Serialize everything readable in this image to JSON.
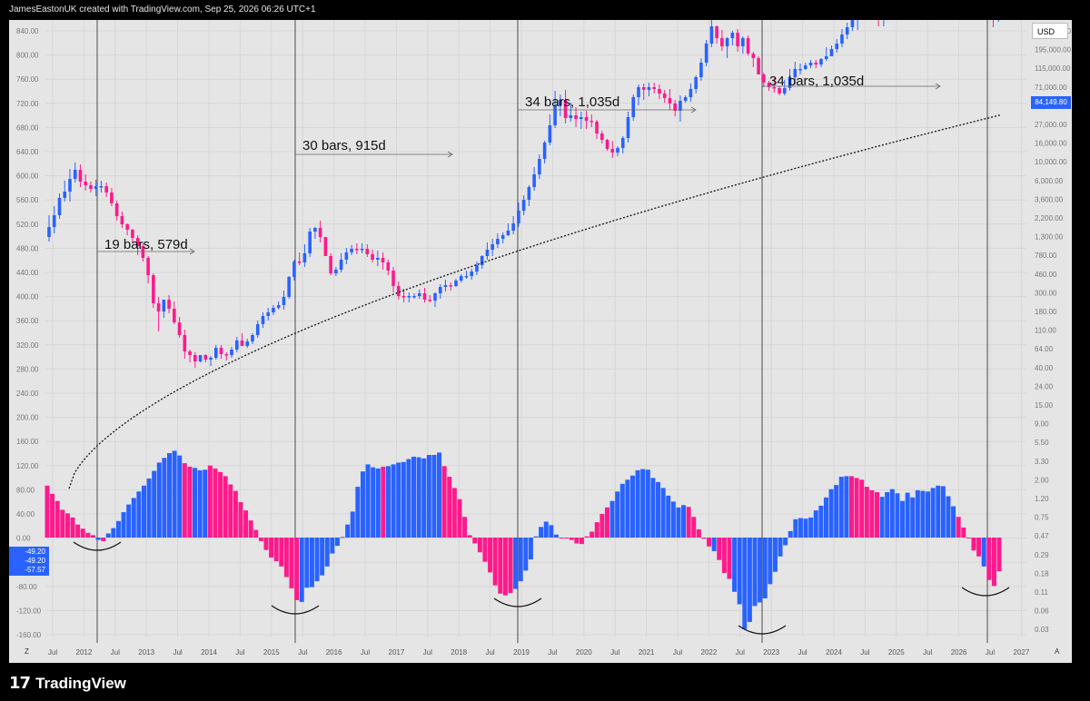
{
  "header": {
    "credit": "JamesEastonUK created with TradingView.com, Sep 25, 2026 06:26 UTC+1"
  },
  "footer": {
    "brand": "TradingView",
    "logo_glyph": "17"
  },
  "ui": {
    "currency": "USD",
    "last_price": "84,149.80",
    "osc_values": [
      "-49.20",
      "-49.20",
      "-57.57"
    ],
    "z": "Z",
    "a": "A"
  },
  "colors": {
    "up": "#2962ff",
    "down": "#ff1a8c",
    "bg": "#e5e5e5",
    "grid": "#d6d6d6"
  },
  "chart_data": {
    "type": "candlestick + histogram",
    "scale": "log",
    "x_ticks": [
      "Jul",
      "2012",
      "Jul",
      "2013",
      "Jul",
      "2014",
      "Jul",
      "2015",
      "Jul",
      "2016",
      "Jul",
      "2017",
      "Jul",
      "2018",
      "Jul",
      "2019",
      "Jul",
      "2020",
      "Jul",
      "2021",
      "Jul",
      "2022",
      "Jul",
      "2023",
      "Jul",
      "2024",
      "Jul",
      "2025",
      "Jul",
      "2026",
      "Jul",
      "2027"
    ],
    "right_axis": [
      "335,000.00",
      "195,000.00",
      "115,000.00",
      "71,000.00",
      "43,000.00",
      "27,000.00",
      "16,000.00",
      "10,000.00",
      "6,000.00",
      "3,600.00",
      "2,200.00",
      "1,300.00",
      "780.00",
      "460.00",
      "300.00",
      "180.00",
      "110.00",
      "64.00",
      "40.00",
      "24.00",
      "15.00",
      "9.00",
      "5.50",
      "3.30",
      "2.00",
      "1.20",
      "0.75",
      "0.47",
      "0.29",
      "0.18",
      "0.11",
      "0.06",
      "0.03"
    ],
    "left_axis": [
      "840.00",
      "800.00",
      "760.00",
      "720.00",
      "680.00",
      "640.00",
      "600.00",
      "560.00",
      "520.00",
      "480.00",
      "440.00",
      "400.00",
      "360.00",
      "320.00",
      "280.00",
      "240.00",
      "200.00",
      "160.00",
      "120.00",
      "80.00",
      "40.00",
      "0.00",
      "-40.00",
      "-80.00",
      "-120.00",
      "-160.00"
    ],
    "annotations": [
      "19 bars, 579d",
      "30 bars, 915d",
      "34 bars, 1,035d",
      "34 bars, 1,035d"
    ],
    "candles": [
      [
        201,
        212,
        225,
        196
      ],
      [
        212,
        225,
        235,
        205
      ],
      [
        225,
        244,
        249,
        221
      ],
      [
        244,
        251,
        263,
        240
      ],
      [
        251,
        265,
        276,
        240
      ],
      [
        265,
        275,
        283,
        261
      ],
      [
        275,
        262,
        281,
        256
      ],
      [
        262,
        258,
        270,
        252
      ],
      [
        258,
        254,
        262,
        250
      ],
      [
        254,
        257,
        264,
        246
      ],
      [
        257,
        257,
        263,
        250
      ],
      [
        257,
        250,
        261,
        245
      ],
      [
        250,
        238,
        255,
        235
      ],
      [
        238,
        224,
        241,
        219
      ],
      [
        224,
        215,
        229,
        211
      ],
      [
        215,
        209,
        216,
        203
      ],
      [
        209,
        200,
        210,
        195
      ],
      [
        200,
        191,
        203,
        181
      ],
      [
        191,
        178,
        194,
        174
      ],
      [
        178,
        159,
        180,
        150
      ],
      [
        159,
        128,
        161,
        123
      ],
      [
        128,
        119,
        135,
        97
      ],
      [
        119,
        132,
        126,
        112
      ],
      [
        132,
        122,
        137,
        117
      ],
      [
        122,
        107,
        130,
        105
      ],
      [
        107,
        93,
        113,
        90
      ],
      [
        93,
        75,
        99,
        67
      ],
      [
        75,
        71,
        77,
        63
      ],
      [
        71,
        64,
        74,
        57
      ],
      [
        64,
        71,
        70,
        63
      ],
      [
        71,
        66,
        72,
        63
      ],
      [
        66,
        68,
        70,
        59
      ],
      [
        68,
        79,
        82,
        66
      ],
      [
        79,
        72,
        82,
        67
      ],
      [
        72,
        71,
        74,
        65
      ],
      [
        71,
        77,
        80,
        68
      ],
      [
        77,
        87,
        91,
        74
      ],
      [
        87,
        81,
        95,
        81
      ],
      [
        81,
        86,
        89,
        79
      ],
      [
        86,
        93,
        95,
        83
      ],
      [
        93,
        105,
        109,
        90
      ],
      [
        105,
        114,
        118,
        101
      ],
      [
        114,
        118,
        123,
        109
      ],
      [
        118,
        123,
        126,
        115
      ],
      [
        123,
        126,
        130,
        121
      ],
      [
        126,
        135,
        142,
        121
      ],
      [
        135,
        157,
        158,
        133
      ],
      [
        157,
        174,
        176,
        153
      ],
      [
        174,
        173,
        184,
        170
      ],
      [
        173,
        183,
        193,
        168
      ],
      [
        183,
        207,
        211,
        179
      ],
      [
        207,
        211,
        212,
        199
      ],
      [
        211,
        201,
        219,
        195
      ],
      [
        201,
        180,
        201,
        180
      ],
      [
        180,
        161,
        183,
        159
      ],
      [
        161,
        165,
        168,
        158
      ],
      [
        165,
        176,
        183,
        162
      ],
      [
        176,
        184,
        189,
        171
      ],
      [
        184,
        188,
        192,
        181
      ],
      [
        188,
        187,
        194,
        182
      ],
      [
        187,
        188,
        194,
        183
      ],
      [
        188,
        182,
        193,
        179
      ],
      [
        182,
        176,
        187,
        173
      ],
      [
        176,
        178,
        186,
        169
      ],
      [
        178,
        173,
        184,
        165
      ],
      [
        173,
        164,
        176,
        159
      ],
      [
        164,
        147,
        168,
        140
      ],
      [
        147,
        136,
        152,
        132
      ],
      [
        136,
        135,
        144,
        129
      ],
      [
        135,
        136,
        140,
        129
      ],
      [
        136,
        136,
        139,
        133
      ],
      [
        136,
        139,
        143,
        133
      ],
      [
        139,
        132,
        145,
        129
      ],
      [
        132,
        131,
        137,
        129
      ],
      [
        131,
        139,
        140,
        124
      ],
      [
        139,
        146,
        149,
        133
      ],
      [
        146,
        148,
        154,
        141
      ],
      [
        148,
        147,
        151,
        142
      ],
      [
        147,
        153,
        155,
        146
      ],
      [
        153,
        158,
        160,
        151
      ],
      [
        158,
        158,
        164,
        155
      ],
      [
        158,
        163,
        166,
        154
      ],
      [
        163,
        170,
        174,
        159
      ],
      [
        170,
        180,
        181,
        166
      ],
      [
        180,
        187,
        195,
        176
      ],
      [
        187,
        193,
        199,
        180
      ],
      [
        193,
        199,
        205,
        189
      ],
      [
        199,
        203,
        206,
        194
      ],
      [
        203,
        208,
        216,
        202
      ],
      [
        208,
        216,
        224,
        204
      ],
      [
        216,
        230,
        239,
        212
      ],
      [
        230,
        242,
        247,
        225
      ],
      [
        242,
        256,
        258,
        235
      ],
      [
        256,
        270,
        278,
        252
      ],
      [
        270,
        287,
        292,
        265
      ],
      [
        287,
        305,
        307,
        282
      ],
      [
        305,
        324,
        336,
        302
      ],
      [
        324,
        346,
        362,
        321
      ],
      [
        346,
        352,
        358,
        334
      ],
      [
        352,
        332,
        363,
        326
      ],
      [
        332,
        335,
        349,
        328
      ],
      [
        335,
        331,
        344,
        322
      ],
      [
        331,
        333,
        339,
        320
      ],
      [
        333,
        329,
        340,
        320
      ],
      [
        329,
        328,
        336,
        322
      ],
      [
        328,
        315,
        330,
        309
      ],
      [
        315,
        308,
        318,
        304
      ],
      [
        308,
        298,
        309,
        296
      ],
      [
        298,
        294,
        307,
        288
      ],
      [
        294,
        299,
        301,
        290
      ],
      [
        299,
        310,
        312,
        293
      ],
      [
        310,
        333,
        339,
        305
      ],
      [
        333,
        355,
        358,
        329
      ],
      [
        355,
        366,
        369,
        346
      ],
      [
        366,
        363,
        370,
        352
      ],
      [
        363,
        366,
        371,
        356
      ],
      [
        366,
        364,
        371,
        359
      ],
      [
        364,
        359,
        369,
        353
      ],
      [
        359,
        354,
        363,
        349
      ],
      [
        354,
        348,
        364,
        341
      ],
      [
        348,
        340,
        352,
        334
      ],
      [
        340,
        351,
        357,
        328
      ],
      [
        351,
        355,
        357,
        349
      ],
      [
        355,
        364,
        370,
        350
      ],
      [
        364,
        377,
        379,
        359
      ],
      [
        377,
        393,
        398,
        373
      ],
      [
        393,
        414,
        418,
        389
      ],
      [
        414,
        433,
        444,
        410
      ],
      [
        433,
        420,
        434,
        414
      ],
      [
        420,
        411,
        429,
        406
      ],
      [
        411,
        420,
        421,
        398
      ],
      [
        420,
        426,
        428,
        412
      ],
      [
        426,
        411,
        430,
        405
      ],
      [
        411,
        420,
        422,
        403
      ],
      [
        420,
        403,
        423,
        401
      ],
      [
        403,
        398,
        405,
        388
      ],
      [
        398,
        380,
        400,
        380
      ],
      [
        380,
        371,
        382,
        366
      ],
      [
        371,
        366,
        373,
        362
      ],
      [
        366,
        365,
        376,
        360
      ],
      [
        365,
        359,
        367,
        357
      ],
      [
        359,
        365,
        374,
        357
      ],
      [
        365,
        377,
        386,
        362
      ],
      [
        377,
        386,
        394,
        369
      ],
      [
        386,
        386,
        392,
        380
      ],
      [
        386,
        390,
        393,
        385
      ],
      [
        390,
        393,
        396,
        387
      ],
      [
        393,
        391,
        396,
        387
      ],
      [
        391,
        397,
        398,
        388
      ],
      [
        397,
        400,
        410,
        395
      ],
      [
        400,
        408,
        412,
        400
      ],
      [
        408,
        414,
        419,
        404
      ],
      [
        414,
        424,
        430,
        410
      ],
      [
        424,
        432,
        437,
        419
      ],
      [
        432,
        441,
        446,
        428
      ],
      [
        441,
        450,
        454,
        429
      ],
      [
        450,
        450,
        453,
        441
      ],
      [
        450,
        448,
        454,
        440
      ],
      [
        448,
        450,
        460,
        446
      ],
      [
        450,
        440,
        450,
        433
      ],
      [
        440,
        452,
        456,
        433
      ],
      [
        452,
        470,
        474,
        449
      ],
      [
        470,
        469,
        475,
        465
      ],
      [
        469,
        467,
        475,
        461
      ],
      [
        467,
        467,
        474,
        464
      ],
      [
        467,
        461,
        468,
        457
      ],
      [
        461,
        472,
        474,
        453
      ],
      [
        472,
        472,
        478,
        467
      ],
      [
        472,
        465,
        473,
        461
      ],
      [
        465,
        475,
        476,
        462
      ],
      [
        475,
        475,
        478,
        471
      ],
      [
        475,
        474,
        484,
        472
      ],
      [
        474,
        479,
        484,
        473
      ],
      [
        479,
        476,
        483,
        472
      ],
      [
        476,
        474,
        479,
        465
      ],
      [
        474,
        473,
        475,
        462
      ],
      [
        473,
        467,
        470,
        459
      ],
      [
        467,
        469,
        470,
        453
      ],
      [
        469,
        459,
        460,
        456
      ],
      [
        459,
        455,
        460,
        451
      ],
      [
        455,
        447,
        456,
        441
      ],
      [
        447,
        442,
        448,
        432
      ],
      [
        442,
        453,
        458,
        438
      ],
      [
        453,
        458,
        465,
        451
      ]
    ],
    "histogram": [
      88,
      74,
      62,
      47,
      41,
      34,
      22,
      15,
      8,
      4,
      -4,
      -6,
      7,
      16,
      28,
      43,
      56,
      67,
      78,
      88,
      100,
      113,
      127,
      135,
      143,
      147,
      139,
      126,
      120,
      118,
      114,
      115,
      122,
      117,
      111,
      104,
      90,
      79,
      60,
      46,
      29,
      13,
      -6,
      -21,
      -34,
      -40,
      -49,
      -67,
      -86,
      -106,
      -109,
      -85,
      -84,
      -74,
      -64,
      -49,
      -27,
      -14,
      1,
      22,
      44,
      86,
      112,
      124,
      119,
      117,
      120,
      121,
      124,
      127,
      128,
      133,
      137,
      136,
      134,
      140,
      140,
      144,
      121,
      103,
      84,
      65,
      35,
      4,
      -10,
      -25,
      -41,
      -59,
      -81,
      -95,
      -98,
      -94,
      -87,
      -74,
      -56,
      -37,
      2,
      18,
      27,
      21,
      5,
      0,
      -1,
      -4,
      -10,
      -11,
      2,
      10,
      26,
      40,
      51,
      62,
      78,
      91,
      98,
      105,
      114,
      116,
      115,
      101,
      94,
      84,
      71,
      61,
      51,
      55,
      52,
      35,
      14,
      -2,
      -15,
      -23,
      -38,
      -60,
      -70,
      -92,
      -113,
      -155,
      -143,
      -116,
      -110,
      -103,
      -79,
      -58,
      -32,
      -13,
      11,
      31,
      33,
      32,
      34,
      46,
      54,
      68,
      82,
      89,
      103,
      104,
      104,
      101,
      98,
      86,
      80,
      77,
      69,
      77,
      82,
      75,
      62,
      76,
      68,
      80,
      79,
      78,
      84,
      88,
      87,
      70,
      53,
      35,
      17,
      0,
      -22,
      -32,
      -49,
      -72,
      -82,
      -57
    ],
    "hist_colors": "b=>up,m=>down",
    "hist_color_seq": "mmmmmmmmmmbmbbbbbbbbbbbbbbbmmbbbmmmmmmmmmmmmmmmmmmbbbbbbbbbbbbbbbbmbbbbbbbbbbbmmmmmmmmmmmmmmbbbbbbbbbmmmmmmmmmmbbbbbbbbbbbbbbbmmmmmbmmmbbbbbbbbbbbbbbbbbbbbbbbmmmmmmbbbbbbbbbbbbbbbmmmmmbmmmmmbbbbmmmmmmmmb"
  }
}
